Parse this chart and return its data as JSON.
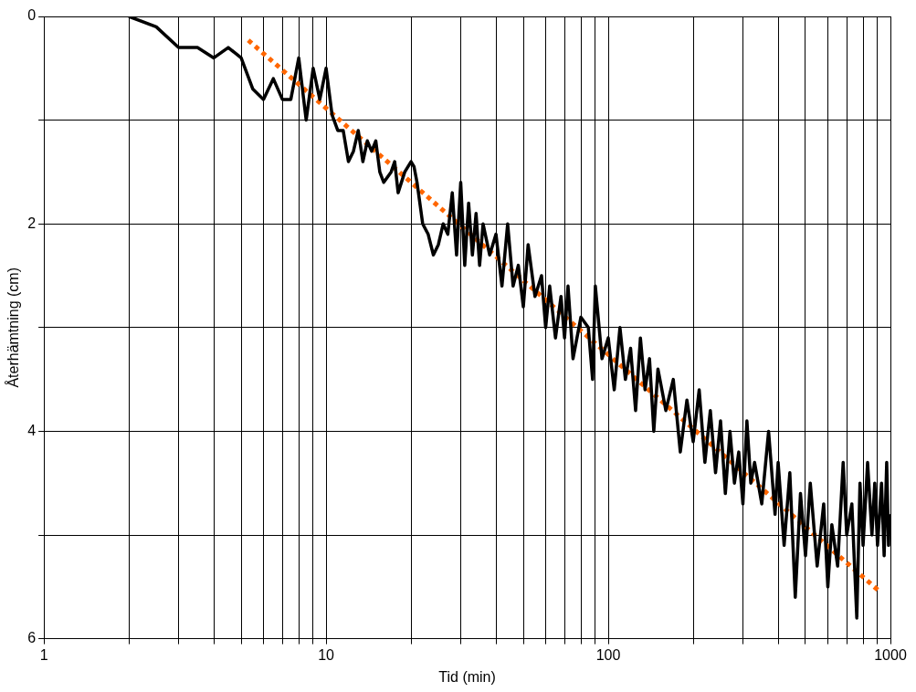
{
  "chart_data": {
    "type": "line",
    "xlabel": "Tid (min)",
    "ylabel": "Återhämtning (cm)",
    "log": "x",
    "grid": true,
    "legend": false,
    "xlim": [
      1,
      1000
    ],
    "ylim": [
      6,
      0
    ],
    "xticks": [
      1,
      {
        "value": 2,
        "label": null
      },
      {
        "value": 3,
        "label": null
      },
      {
        "value": 4,
        "label": null
      },
      {
        "value": 5,
        "label": null
      },
      {
        "value": 6,
        "label": null
      },
      {
        "value": 7,
        "label": null
      },
      {
        "value": 8,
        "label": null
      },
      {
        "value": 9,
        "label": null
      },
      10,
      {
        "value": 20,
        "label": null
      },
      {
        "value": 30,
        "label": null
      },
      {
        "value": 40,
        "label": null
      },
      {
        "value": 50,
        "label": null
      },
      {
        "value": 60,
        "label": null
      },
      {
        "value": 70,
        "label": null
      },
      {
        "value": 80,
        "label": null
      },
      {
        "value": 90,
        "label": null
      },
      100,
      {
        "value": 200,
        "label": null
      },
      {
        "value": 300,
        "label": null
      },
      {
        "value": 400,
        "label": null
      },
      {
        "value": 500,
        "label": null
      },
      {
        "value": 600,
        "label": null
      },
      {
        "value": 700,
        "label": null
      },
      {
        "value": 800,
        "label": null
      },
      {
        "value": 900,
        "label": null
      },
      1000
    ],
    "yticks": [
      0,
      {
        "value": 1,
        "label": null
      },
      2,
      {
        "value": 3,
        "label": null
      },
      4,
      {
        "value": 5,
        "label": null
      },
      6
    ],
    "series": [
      {
        "color": "#000000",
        "line_style": "solid",
        "x": [
          2,
          2.5,
          3,
          3.5,
          4,
          4.5,
          5,
          5.5,
          6,
          6.5,
          7,
          7.5,
          8,
          8.5,
          9,
          9.5,
          10,
          10.5,
          11,
          11.5,
          12,
          12.5,
          13,
          13.5,
          14,
          14.5,
          15,
          15.5,
          16,
          17,
          17.5,
          18,
          19,
          20,
          20.5,
          21,
          22,
          23,
          24,
          25,
          26,
          27,
          28,
          29,
          30,
          31,
          32,
          33,
          34,
          35,
          36,
          38,
          40,
          42,
          44,
          46,
          48,
          50,
          52,
          55,
          58,
          60,
          62,
          65,
          68,
          70,
          72,
          75,
          80,
          85,
          88,
          90,
          95,
          100,
          105,
          110,
          115,
          120,
          125,
          130,
          135,
          140,
          145,
          150,
          160,
          170,
          180,
          190,
          200,
          210,
          220,
          230,
          240,
          250,
          260,
          270,
          280,
          290,
          300,
          310,
          320,
          330,
          350,
          370,
          390,
          400,
          420,
          440,
          460,
          480,
          500,
          520,
          550,
          580,
          600,
          620,
          650,
          680,
          700,
          730,
          760,
          780,
          800,
          830,
          860,
          880,
          900,
          930,
          950,
          970,
          985,
          990
        ],
        "values": [
          0,
          0.1,
          0.3,
          0.3,
          0.4,
          0.3,
          0.4,
          0.7,
          0.8,
          0.6,
          0.8,
          0.8,
          0.4,
          1.0,
          0.5,
          0.8,
          0.5,
          0.95,
          1.1,
          1.1,
          1.4,
          1.3,
          1.1,
          1.4,
          1.2,
          1.3,
          1.2,
          1.5,
          1.6,
          1.5,
          1.4,
          1.7,
          1.5,
          1.4,
          1.45,
          1.6,
          2.0,
          2.1,
          2.3,
          2.2,
          2.0,
          2.1,
          1.7,
          2.3,
          1.6,
          2.4,
          1.8,
          2.3,
          1.9,
          2.4,
          2.0,
          2.3,
          2.1,
          2.6,
          2.0,
          2.6,
          2.4,
          2.8,
          2.2,
          2.7,
          2.5,
          3.0,
          2.6,
          3.1,
          2.7,
          3.1,
          2.6,
          3.3,
          2.9,
          3.0,
          3.5,
          2.6,
          3.3,
          3.1,
          3.6,
          3.0,
          3.5,
          3.2,
          3.8,
          3.1,
          3.6,
          3.3,
          4.0,
          3.4,
          3.8,
          3.5,
          4.2,
          3.7,
          4.1,
          3.6,
          4.3,
          3.8,
          4.4,
          3.9,
          4.6,
          4.0,
          4.5,
          4.2,
          4.7,
          3.9,
          4.5,
          4.3,
          4.7,
          4.0,
          4.8,
          4.3,
          5.1,
          4.4,
          5.6,
          4.6,
          5.2,
          4.5,
          5.3,
          4.7,
          5.5,
          4.9,
          5.3,
          4.3,
          5.0,
          4.7,
          5.8,
          4.5,
          5.1,
          4.3,
          5.0,
          4.5,
          5.1,
          4.5,
          5.2,
          4.3,
          5.1,
          4.8
        ]
      },
      {
        "color": "#ff6600",
        "line_style": "dotted",
        "x": [
          5.3,
          920
        ],
        "values": [
          0.23,
          5.55
        ]
      }
    ]
  }
}
